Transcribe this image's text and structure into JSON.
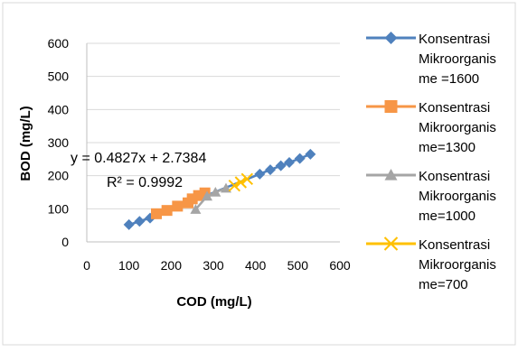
{
  "chart_data": {
    "type": "scatter",
    "xlabel": "COD (mg/L)",
    "ylabel": "BOD (mg/L)",
    "xlim": [
      0,
      600
    ],
    "ylim": [
      0,
      600
    ],
    "x_ticks": [
      "0",
      "100",
      "200",
      "300",
      "400",
      "500",
      "600"
    ],
    "y_ticks": [
      "0",
      "100",
      "200",
      "300",
      "400",
      "500",
      "600"
    ],
    "grid": "horizontal",
    "legend_position": "right",
    "series": [
      {
        "name": "Konsentrasi Mikroorganisme =1600",
        "legend_lines": [
          "Konsentrasi",
          "Mikroorganis",
          "me =1600"
        ],
        "marker": "diamond",
        "color": "#4F81BD",
        "points": [
          [
            100,
            52
          ],
          [
            125,
            62
          ],
          [
            150,
            72
          ],
          [
            410,
            205
          ],
          [
            435,
            218
          ],
          [
            460,
            230
          ],
          [
            480,
            240
          ],
          [
            505,
            252
          ],
          [
            530,
            265
          ]
        ]
      },
      {
        "name": "Konsentrasi Mikroorganisme=1300",
        "legend_lines": [
          "Konsentrasi",
          "Mikroorganis",
          "me=1300"
        ],
        "marker": "square",
        "color": "#F79646",
        "points": [
          [
            165,
            85
          ],
          [
            190,
            95
          ],
          [
            215,
            108
          ],
          [
            240,
            118
          ],
          [
            250,
            130
          ],
          [
            265,
            140
          ],
          [
            280,
            148
          ]
        ]
      },
      {
        "name": "Konsentrasi Mikroorganisme=1000",
        "legend_lines": [
          "Konsentrasi",
          "Mikroorganis",
          "me=1000"
        ],
        "marker": "triangle",
        "color": "#A5A5A5",
        "points": [
          [
            258,
            98
          ],
          [
            285,
            138
          ],
          [
            305,
            150
          ],
          [
            330,
            162
          ]
        ]
      },
      {
        "name": "Konsentrasi Mikroorganisme=700",
        "legend_lines": [
          "Konsentrasi",
          "Mikroorganis",
          "me=700"
        ],
        "marker": "x",
        "color": "#FFC000",
        "points": [
          [
            350,
            170
          ],
          [
            365,
            180
          ],
          [
            380,
            190
          ]
        ]
      }
    ],
    "trendline": {
      "equation": "y = 0.4827x + 2.7384",
      "r_squared": "R² = 0.9992",
      "slope": 0.4827,
      "intercept": 2.7384,
      "x_range": [
        100,
        180
      ],
      "color": "#000000"
    }
  }
}
